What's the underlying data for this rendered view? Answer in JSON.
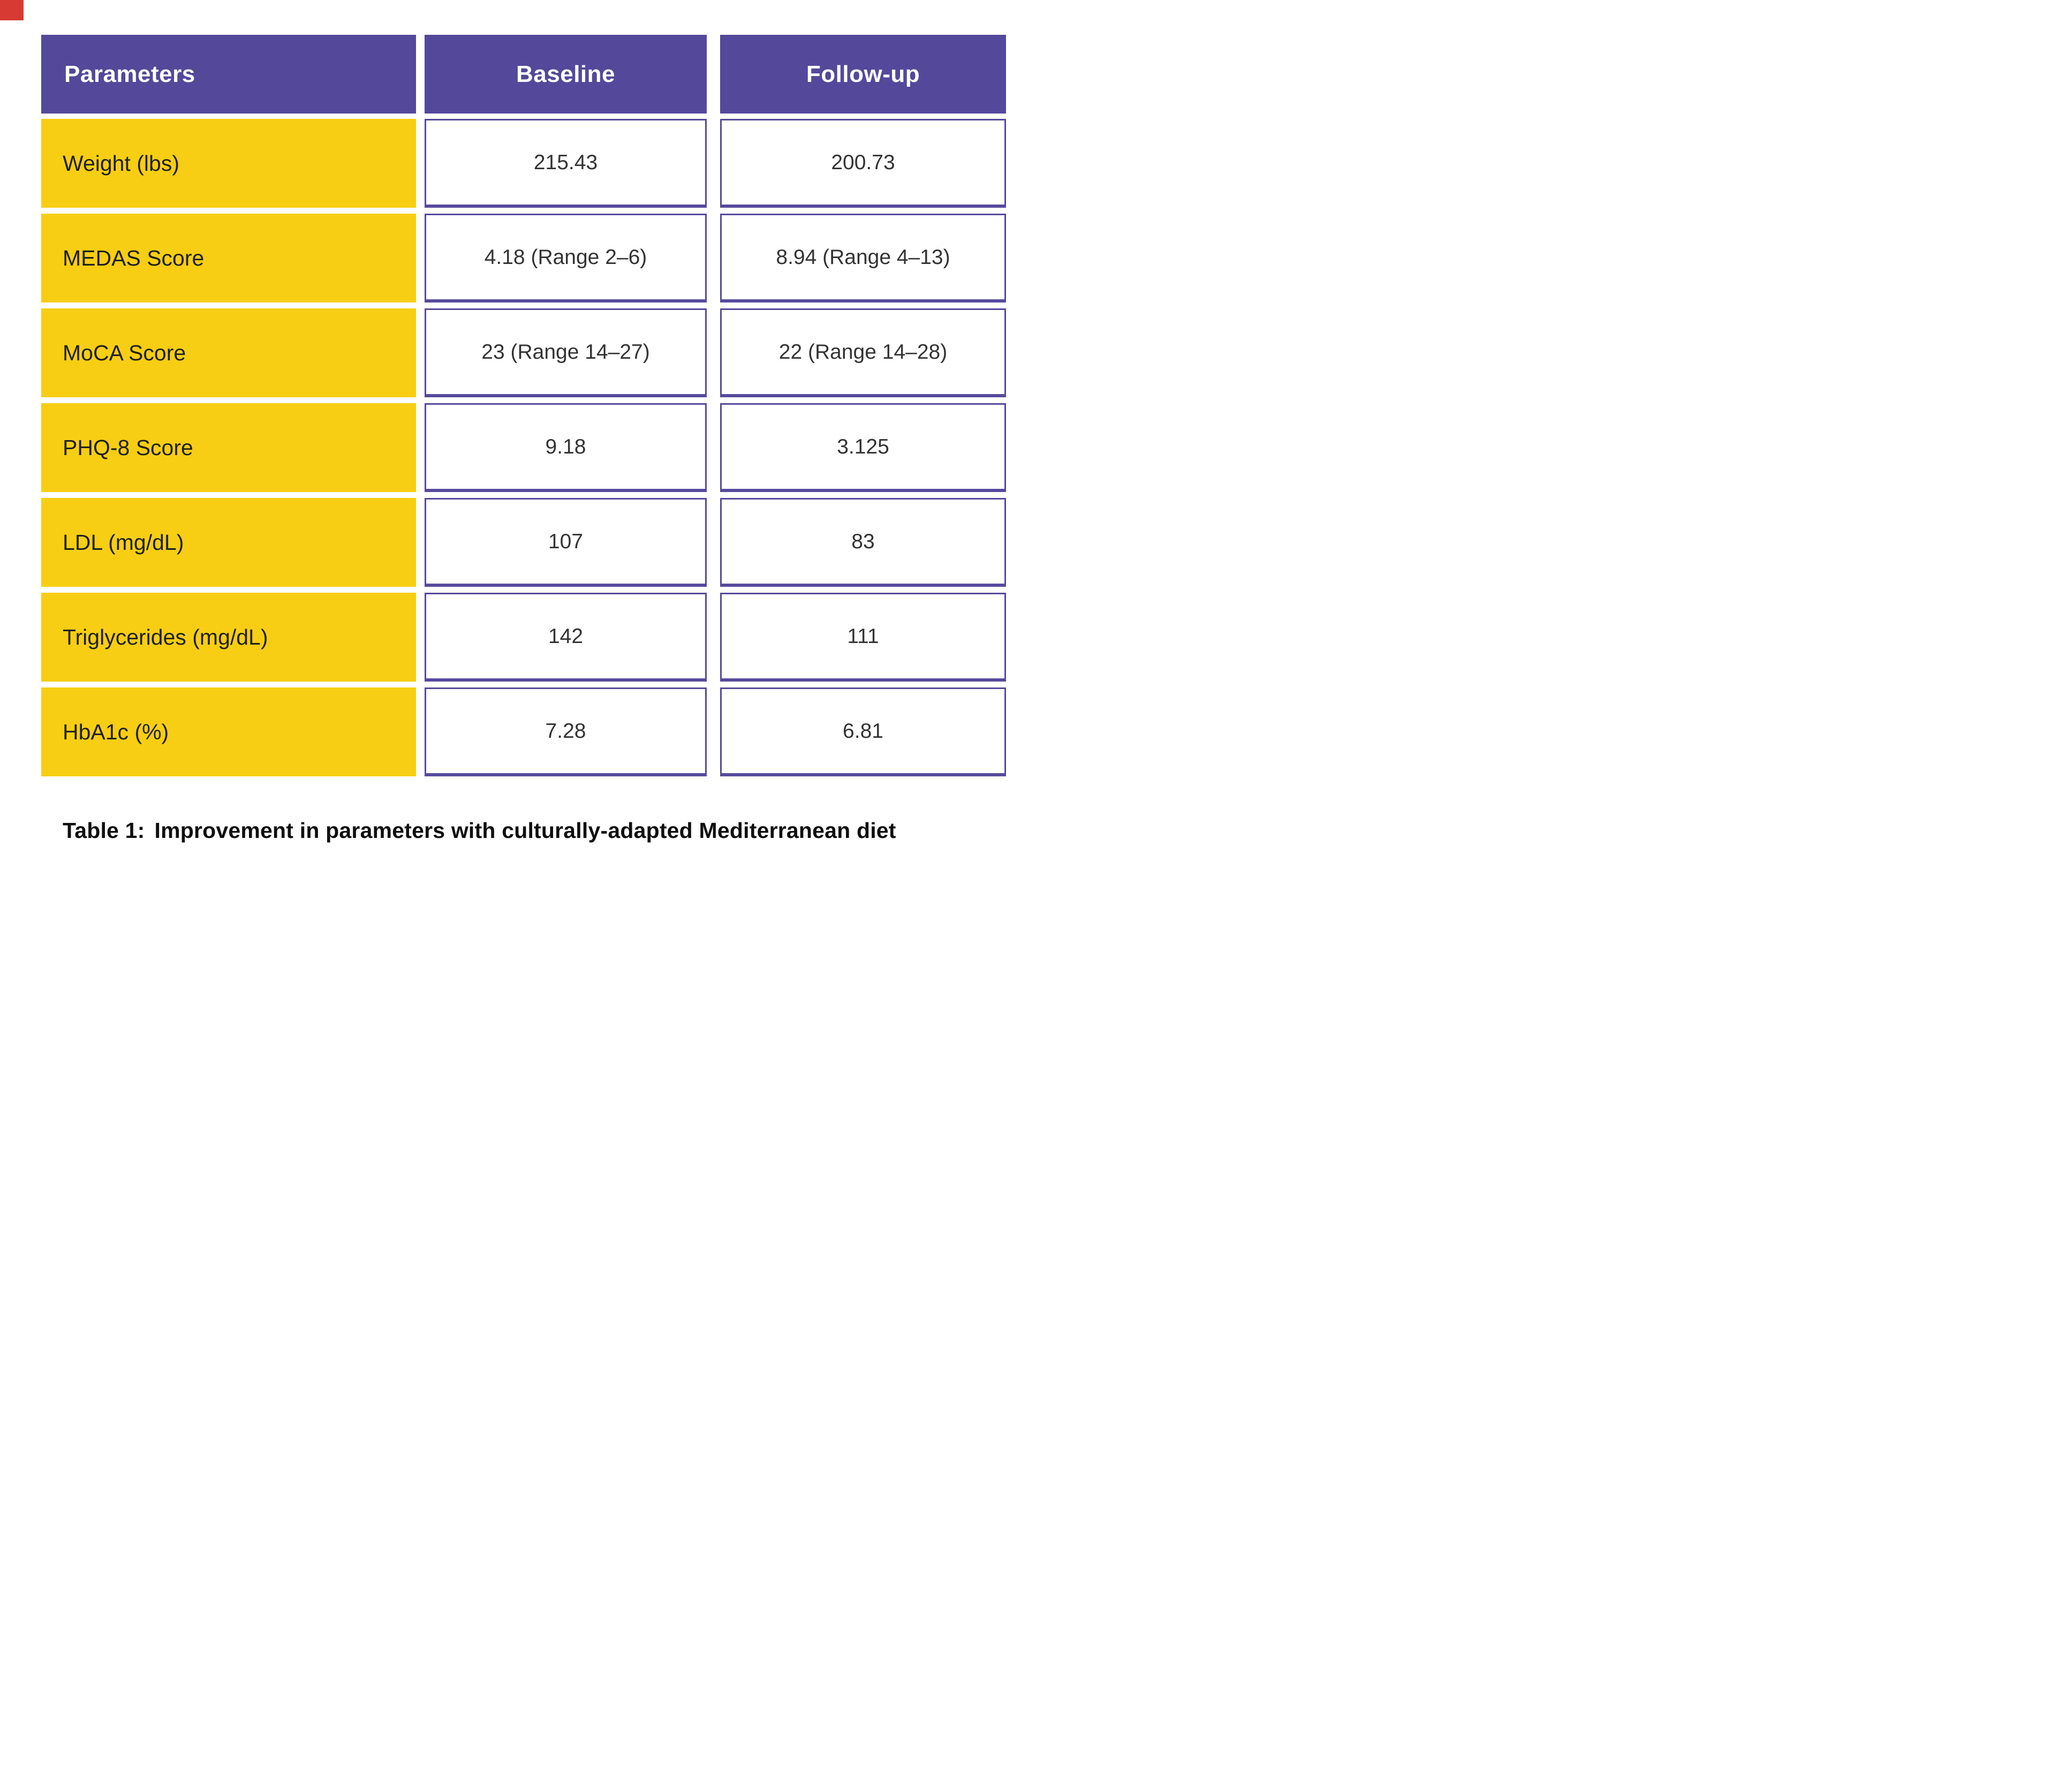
{
  "theme": {
    "header_purple": "#54489b",
    "cell_border_purple": "#564a9d",
    "row_yellow": "#f7ce13",
    "corner_mark_red": "#d63a32",
    "header_text": "#ffffff",
    "body_text": "#1f1f1f"
  },
  "table": {
    "columns": [
      "Parameters",
      "Baseline",
      "Follow-up"
    ],
    "rows": [
      {
        "param": "Weight (lbs)",
        "baseline": "215.43",
        "followup": "200.73"
      },
      {
        "param": "MEDAS Score",
        "baseline": "4.18 (Range 2–6)",
        "followup": "8.94 (Range 4–13)"
      },
      {
        "param": "MoCA Score",
        "baseline": "23 (Range 14–27)",
        "followup": "22 (Range 14–28)"
      },
      {
        "param": "PHQ-8 Score",
        "baseline": "9.18",
        "followup": "3.125"
      },
      {
        "param": "LDL (mg/dL)",
        "baseline": "107",
        "followup": "83"
      },
      {
        "param": "Triglycerides (mg/dL)",
        "baseline": "142",
        "followup": "111"
      },
      {
        "param": "HbA1c (%)",
        "baseline": "7.28",
        "followup": "6.81"
      }
    ]
  },
  "caption": {
    "prefix": "Table 1:",
    "text": "Improvement in parameters with culturally-adapted Mediterranean diet"
  }
}
